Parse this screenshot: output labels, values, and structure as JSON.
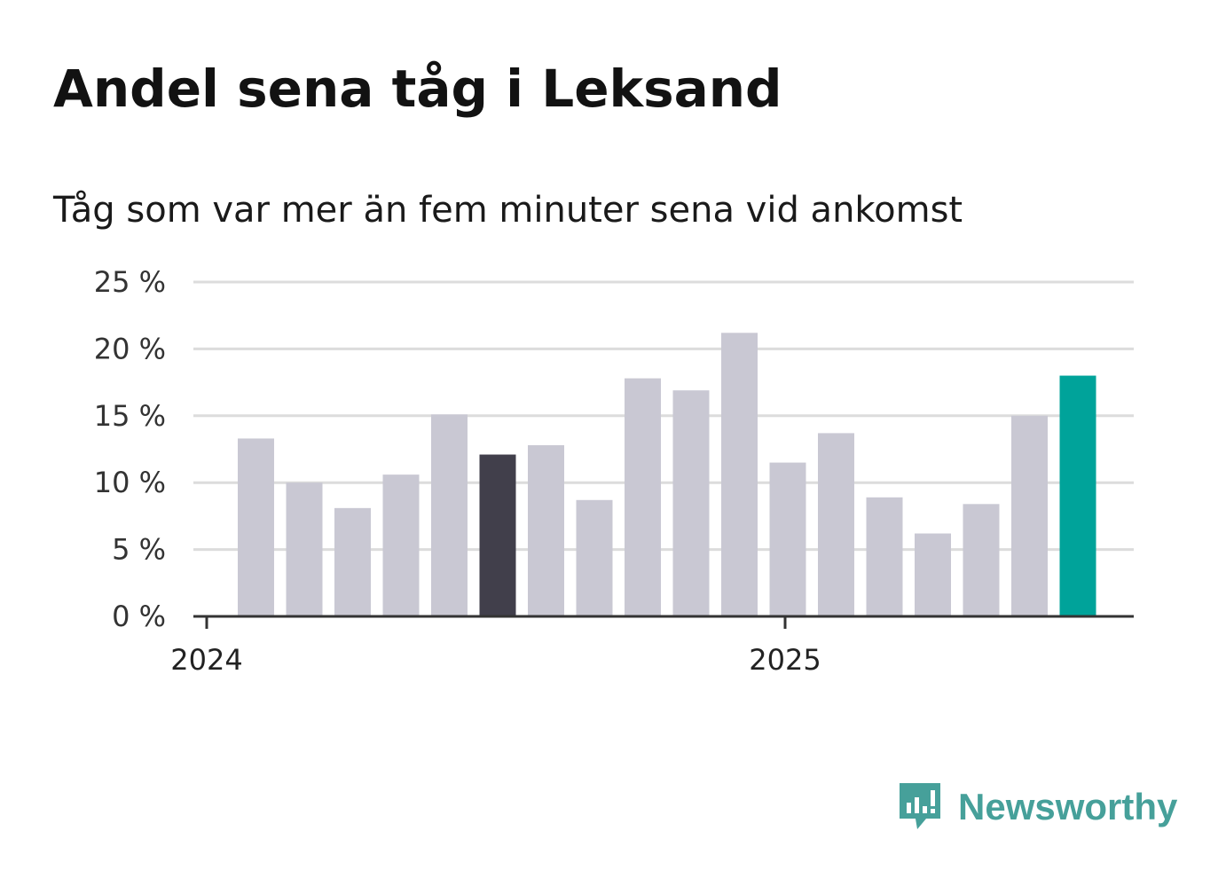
{
  "title": "Andel sena tåg i Leksand",
  "subtitle": "Tåg som var mer än fem minuter sena vid ankomst",
  "brand": {
    "name": "Newsworthy",
    "icon": "chart-bubble-icon",
    "color": "#46a09a"
  },
  "chart_data": {
    "type": "bar",
    "ylim": [
      0,
      25
    ],
    "yticks": [
      0,
      5,
      10,
      15,
      20,
      25
    ],
    "ytick_labels": [
      "0 %",
      "5 %",
      "10 %",
      "15 %",
      "20 %",
      "25 %"
    ],
    "xtick_labels": [
      "2024",
      "2025"
    ],
    "grid": true,
    "colors": {
      "default": "#c9c8d3",
      "highlight": "#413f4b",
      "latest": "#00a39a"
    },
    "bars": [
      {
        "value": 13.3,
        "color": "default"
      },
      {
        "value": 10.0,
        "color": "default"
      },
      {
        "value": 8.1,
        "color": "default"
      },
      {
        "value": 10.6,
        "color": "default"
      },
      {
        "value": 15.1,
        "color": "default"
      },
      {
        "value": 12.1,
        "color": "highlight"
      },
      {
        "value": 12.8,
        "color": "default"
      },
      {
        "value": 8.7,
        "color": "default"
      },
      {
        "value": 17.8,
        "color": "default"
      },
      {
        "value": 16.9,
        "color": "default"
      },
      {
        "value": 21.2,
        "color": "default"
      },
      {
        "value": 11.5,
        "color": "default"
      },
      {
        "value": 13.7,
        "color": "default"
      },
      {
        "value": 8.9,
        "color": "default"
      },
      {
        "value": 6.2,
        "color": "default"
      },
      {
        "value": 8.4,
        "color": "default"
      },
      {
        "value": 15.0,
        "color": "default"
      },
      {
        "value": 18.0,
        "color": "latest"
      }
    ]
  }
}
